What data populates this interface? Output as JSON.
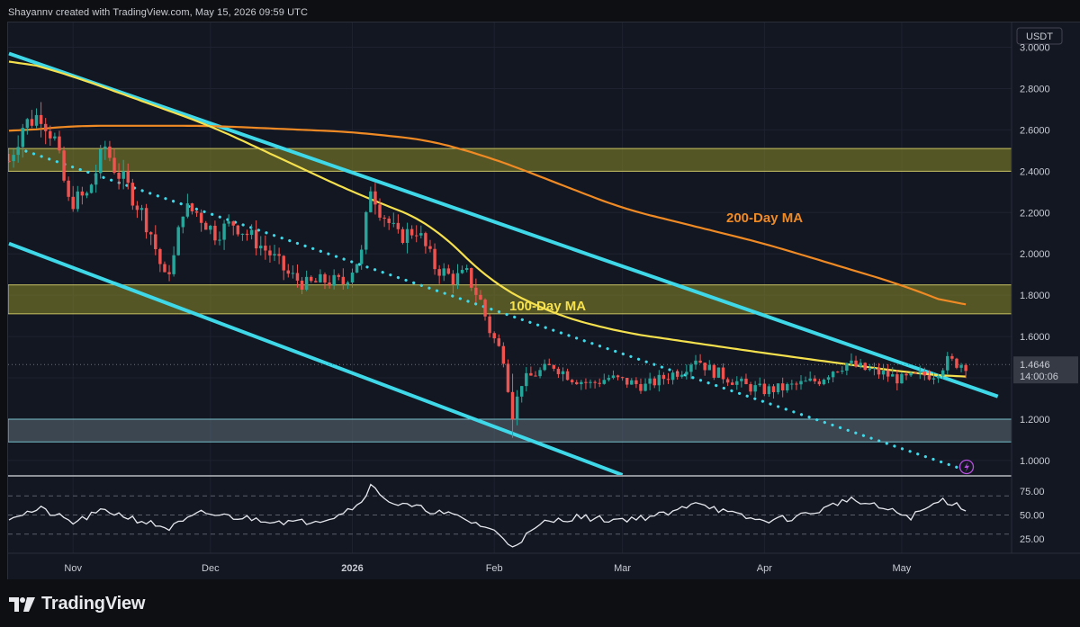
{
  "header": {
    "text": "Shayannv created with TradingView.com, May 15, 2026 09:59 UTC"
  },
  "footer": {
    "brand": "TradingView"
  },
  "colors": {
    "background": "#131722",
    "grid": "#1e2230",
    "candle_up": "#26a69a",
    "candle_down": "#ef5350",
    "ma100": "#f5e04e",
    "ma200": "#f08a24",
    "channel": "#3fd8e8",
    "zone_yellow": "#8a8a2a",
    "zone_gray": "#5d6e78",
    "rsi": "#e6e8ee",
    "price_tag_bg": "#363a45"
  },
  "chart_data": {
    "type": "candlestick",
    "currency_label": "USDT",
    "price_axis": {
      "ticks": [
        "3.0000",
        "2.8000",
        "2.6000",
        "2.4000",
        "2.2000",
        "2.0000",
        "1.8000",
        "1.6000",
        "1.4000",
        "1.2000",
        "1.0000"
      ],
      "range": [
        0.93,
        3.12
      ]
    },
    "current_price": {
      "value": "1.4646",
      "countdown": "14:00:06"
    },
    "time_axis": {
      "labels": [
        "Nov",
        "Dec",
        "2026",
        "Feb",
        "Mar",
        "Apr",
        "May"
      ]
    },
    "ma_labels": {
      "ma200": "200-Day MA",
      "ma100": "100-Day MA"
    },
    "zones": [
      {
        "low": 2.4,
        "high": 2.51
      },
      {
        "low": 1.71,
        "high": 1.85
      },
      {
        "low": 1.09,
        "high": 1.2
      }
    ],
    "price_path": [
      [
        "2025-10-18",
        2.45
      ],
      [
        "2025-10-21",
        2.62
      ],
      [
        "2025-10-25",
        2.68
      ],
      [
        "2025-10-28",
        2.55
      ],
      [
        "2025-10-31",
        2.25
      ],
      [
        "2025-11-04",
        2.28
      ],
      [
        "2025-11-06",
        2.4
      ],
      [
        "2025-11-08",
        2.52
      ],
      [
        "2025-11-10",
        2.42
      ],
      [
        "2025-11-13",
        2.32
      ],
      [
        "2025-11-16",
        2.2
      ],
      [
        "2025-11-18",
        2.1
      ],
      [
        "2025-11-21",
        1.88
      ],
      [
        "2025-11-23",
        1.98
      ],
      [
        "2025-11-25",
        2.22
      ],
      [
        "2025-11-28",
        2.2
      ],
      [
        "2025-12-02",
        2.1
      ],
      [
        "2025-12-06",
        2.15
      ],
      [
        "2025-12-10",
        2.08
      ],
      [
        "2025-12-14",
        2.0
      ],
      [
        "2025-12-18",
        1.9
      ],
      [
        "2025-12-22",
        1.85
      ],
      [
        "2025-12-26",
        1.87
      ],
      [
        "2025-12-30",
        1.86
      ],
      [
        "2026-01-03",
        2.0
      ],
      [
        "2026-01-05",
        2.33
      ],
      [
        "2026-01-07",
        2.22
      ],
      [
        "2026-01-11",
        2.08
      ],
      [
        "2026-01-15",
        2.12
      ],
      [
        "2026-01-19",
        1.94
      ],
      [
        "2026-01-23",
        1.88
      ],
      [
        "2026-01-26",
        1.9
      ],
      [
        "2026-01-29",
        1.77
      ],
      [
        "2026-01-31",
        1.63
      ],
      [
        "2026-02-03",
        1.5
      ],
      [
        "2026-02-05",
        1.22
      ],
      [
        "2026-02-07",
        1.38
      ],
      [
        "2026-02-10",
        1.42
      ],
      [
        "2026-02-14",
        1.46
      ],
      [
        "2026-02-18",
        1.4
      ],
      [
        "2026-02-22",
        1.37
      ],
      [
        "2026-02-26",
        1.4
      ],
      [
        "2026-03-02",
        1.38
      ],
      [
        "2026-03-06",
        1.36
      ],
      [
        "2026-03-10",
        1.4
      ],
      [
        "2026-03-14",
        1.44
      ],
      [
        "2026-03-17",
        1.5
      ],
      [
        "2026-03-20",
        1.44
      ],
      [
        "2026-03-24",
        1.4
      ],
      [
        "2026-03-28",
        1.36
      ],
      [
        "2026-04-01",
        1.34
      ],
      [
        "2026-04-05",
        1.35
      ],
      [
        "2026-04-09",
        1.37
      ],
      [
        "2026-04-13",
        1.39
      ],
      [
        "2026-04-16",
        1.44
      ],
      [
        "2026-04-19",
        1.47
      ],
      [
        "2026-04-23",
        1.44
      ],
      [
        "2026-04-27",
        1.42
      ],
      [
        "2026-05-01",
        1.39
      ],
      [
        "2026-05-05",
        1.41
      ],
      [
        "2026-05-08",
        1.42
      ],
      [
        "2026-05-11",
        1.48
      ],
      [
        "2026-05-15",
        1.4646
      ]
    ],
    "ma200": [
      [
        "2025-10-18",
        2.59
      ],
      [
        "2025-11-01",
        2.62
      ],
      [
        "2025-12-01",
        2.62
      ],
      [
        "2026-01-01",
        2.59
      ],
      [
        "2026-01-18",
        2.55
      ],
      [
        "2026-02-01",
        2.46
      ],
      [
        "2026-03-01",
        2.22
      ],
      [
        "2026-04-01",
        2.05
      ],
      [
        "2026-05-01",
        1.85
      ],
      [
        "2026-05-15",
        1.73
      ]
    ],
    "ma100": [
      [
        "2025-10-18",
        2.95
      ],
      [
        "2025-11-01",
        2.86
      ],
      [
        "2025-12-01",
        2.62
      ],
      [
        "2026-01-01",
        2.3
      ],
      [
        "2026-01-18",
        2.15
      ],
      [
        "2026-02-01",
        1.85
      ],
      [
        "2026-02-15",
        1.7
      ],
      [
        "2026-03-01",
        1.62
      ],
      [
        "2026-04-01",
        1.52
      ],
      [
        "2026-05-01",
        1.43
      ],
      [
        "2026-05-15",
        1.4
      ]
    ],
    "channel_upper": [
      [
        "2025-10-18",
        2.97
      ],
      [
        "2026-05-22",
        1.31
      ]
    ],
    "channel_lower": [
      [
        "2025-10-18",
        2.05
      ],
      [
        "2026-03-01",
        0.93
      ]
    ],
    "dotted_trendline": [
      [
        "2025-10-20",
        2.51
      ],
      [
        "2026-05-14",
        0.96
      ]
    ],
    "rsi": {
      "ticks": [
        "75.00",
        "50.00",
        "25.00"
      ],
      "levels": [
        70,
        50,
        30
      ],
      "range": [
        10,
        90
      ],
      "values": [
        [
          "2025-10-18",
          48
        ],
        [
          "2025-10-25",
          56
        ],
        [
          "2025-11-01",
          42
        ],
        [
          "2025-11-08",
          55
        ],
        [
          "2025-11-15",
          45
        ],
        [
          "2025-11-22",
          36
        ],
        [
          "2025-11-29",
          52
        ],
        [
          "2025-12-06",
          48
        ],
        [
          "2025-12-13",
          45
        ],
        [
          "2025-12-20",
          42
        ],
        [
          "2025-12-27",
          47
        ],
        [
          "2026-01-02",
          60
        ],
        [
          "2026-01-05",
          80
        ],
        [
          "2026-01-10",
          62
        ],
        [
          "2026-01-17",
          56
        ],
        [
          "2026-01-24",
          48
        ],
        [
          "2026-01-31",
          36
        ],
        [
          "2026-02-05",
          18
        ],
        [
          "2026-02-12",
          42
        ],
        [
          "2026-02-19",
          48
        ],
        [
          "2026-02-26",
          45
        ],
        [
          "2026-03-05",
          47
        ],
        [
          "2026-03-12",
          52
        ],
        [
          "2026-03-17",
          65
        ],
        [
          "2026-03-24",
          52
        ],
        [
          "2026-03-31",
          44
        ],
        [
          "2026-04-07",
          47
        ],
        [
          "2026-04-14",
          56
        ],
        [
          "2026-04-19",
          67
        ],
        [
          "2026-04-26",
          58
        ],
        [
          "2026-05-03",
          48
        ],
        [
          "2026-05-10",
          66
        ],
        [
          "2026-05-15",
          57
        ]
      ]
    }
  }
}
